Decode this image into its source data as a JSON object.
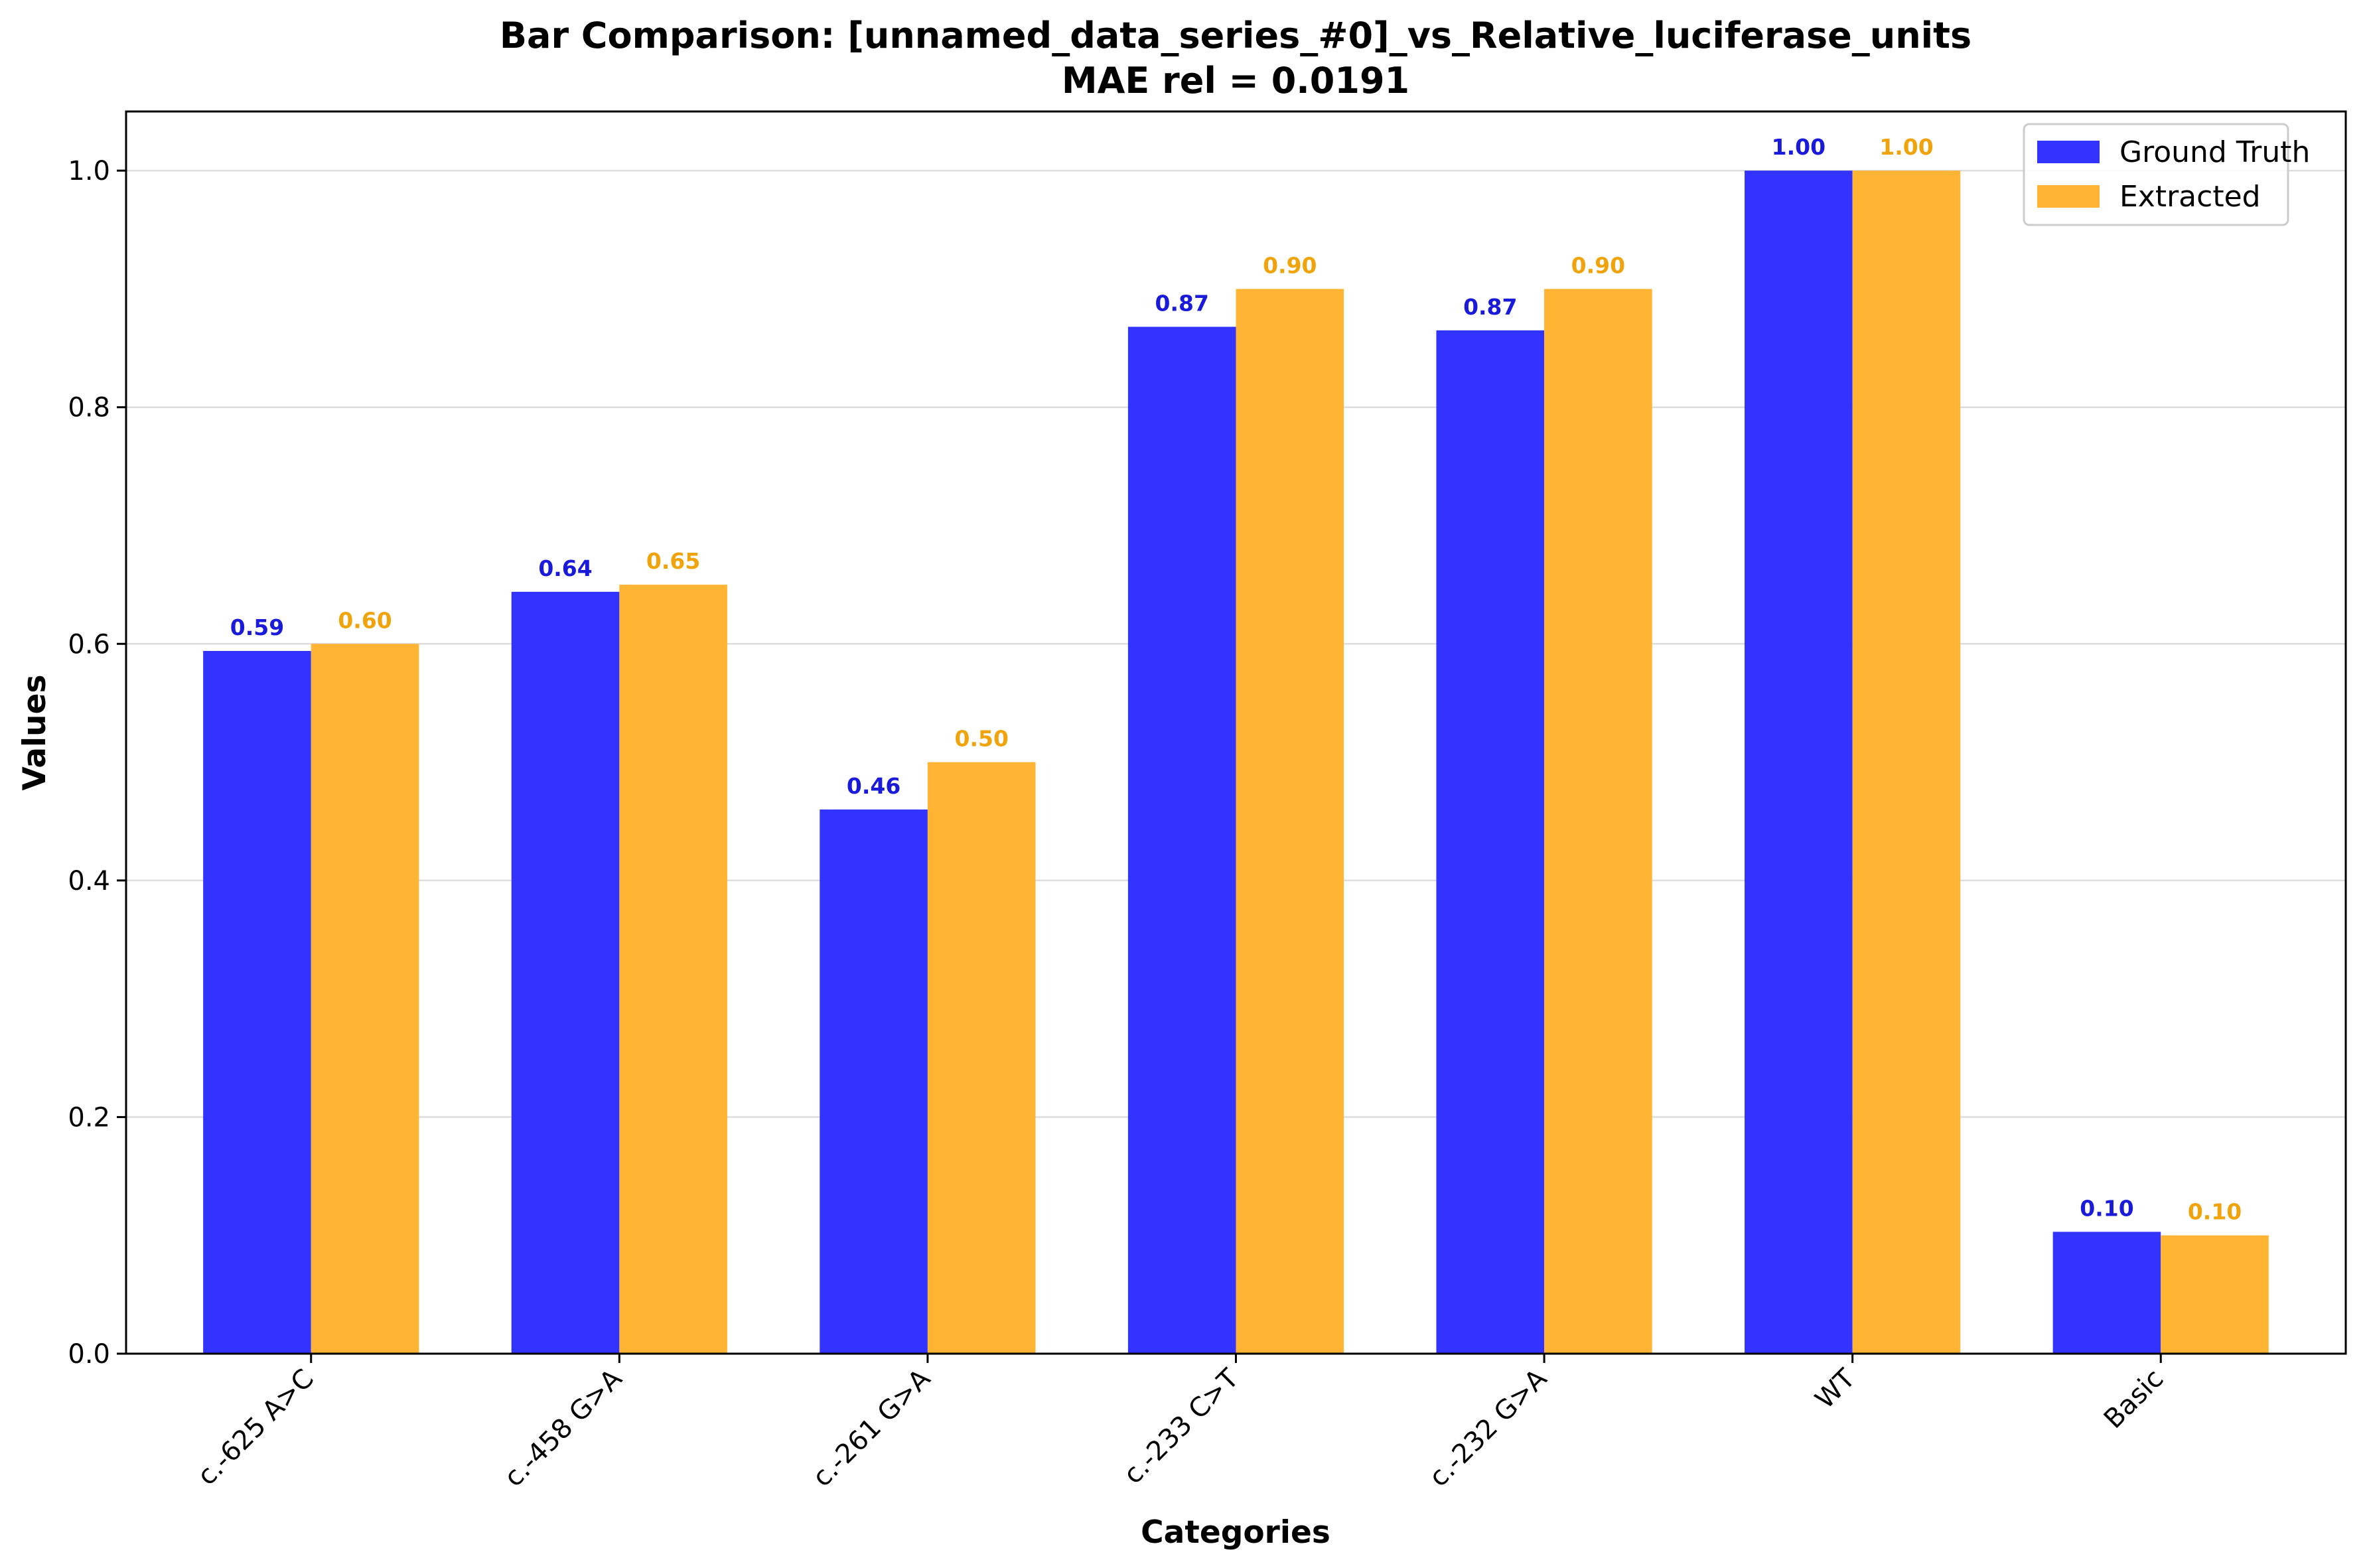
{
  "chart_data": {
    "type": "bar",
    "title": "Bar Comparison: [unnamed_data_series_#0]_vs_Relative_luciferase_units",
    "subtitle": "MAE rel = 0.0191",
    "xlabel": "Categories",
    "ylabel": "Values",
    "categories": [
      "c.-625 A>C",
      "c.-458 G>A",
      "c.-261 G>A",
      "c.-233 C>T",
      "c.-232 G>A",
      "WT",
      "Basic"
    ],
    "series": [
      {
        "name": "Ground Truth",
        "color": "#3333ff",
        "label_color": "#1a1adb",
        "values": [
          0.594,
          0.644,
          0.46,
          0.868,
          0.865,
          1.0,
          0.103
        ],
        "labels": [
          "0.59",
          "0.64",
          "0.46",
          "0.87",
          "0.87",
          "1.00",
          "0.10"
        ]
      },
      {
        "name": "Extracted",
        "color": "#ffb433",
        "label_color": "#f0a30a",
        "values": [
          0.6,
          0.65,
          0.5,
          0.9,
          0.9,
          1.0,
          0.1
        ],
        "labels": [
          "0.60",
          "0.65",
          "0.50",
          "0.90",
          "0.90",
          "1.00",
          "0.10"
        ]
      }
    ],
    "ylim": [
      0,
      1.05
    ],
    "yticks": [
      "0.0",
      "0.2",
      "0.4",
      "0.6",
      "0.8",
      "1.0"
    ],
    "ytick_values": [
      0,
      0.2,
      0.4,
      0.6,
      0.8,
      1.0
    ],
    "grid": "horizontal",
    "legend": "top-right"
  }
}
